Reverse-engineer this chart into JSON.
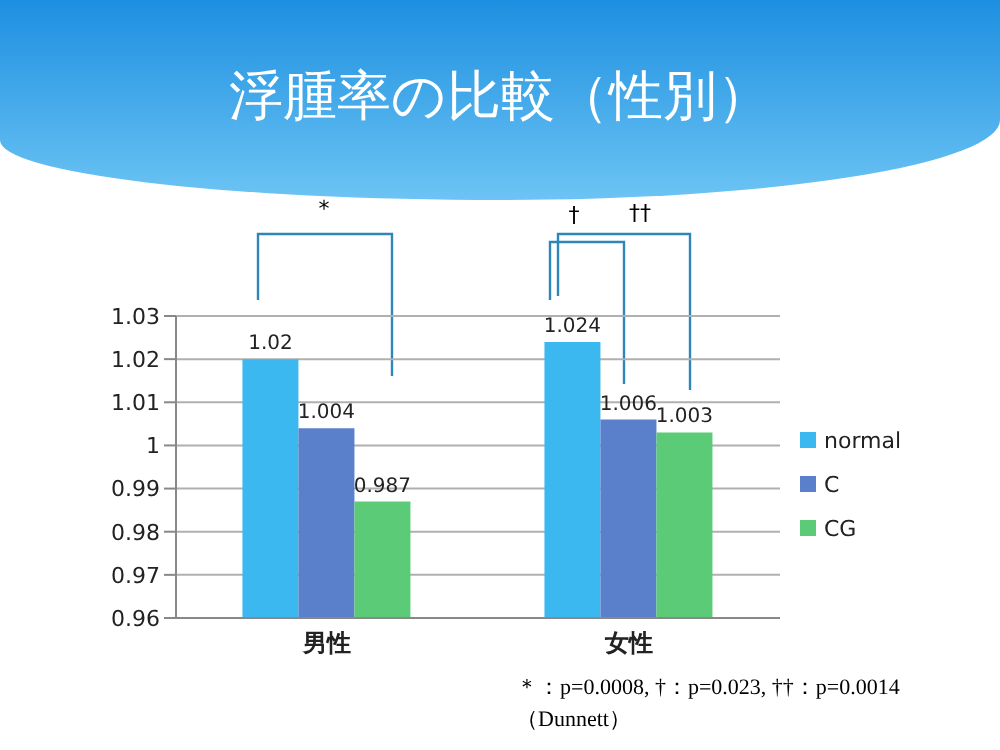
{
  "chart_data": {
    "type": "bar",
    "title": "浮腫率の比較（性別）",
    "categories": [
      "男性",
      "女性"
    ],
    "series": [
      {
        "name": "normal",
        "color": "#3bb8f0",
        "values": [
          1.02,
          1.024
        ]
      },
      {
        "name": "C",
        "color": "#5a80cc",
        "values": [
          1.004,
          1.006
        ]
      },
      {
        "name": "CG",
        "color": "#5ccb78",
        "values": [
          0.987,
          1.003
        ]
      }
    ],
    "ylim": [
      0.96,
      1.03
    ],
    "yticks": [
      0.96,
      0.97,
      0.98,
      0.99,
      1,
      1.01,
      1.02,
      1.03
    ],
    "grid": "y",
    "legend": "right",
    "data_labels": true,
    "annotations": [
      "*",
      "†",
      "††",
      "＊：p=0.0008, †：p=0.023, ††：p=0.0014",
      "（Dunnett）"
    ]
  }
}
